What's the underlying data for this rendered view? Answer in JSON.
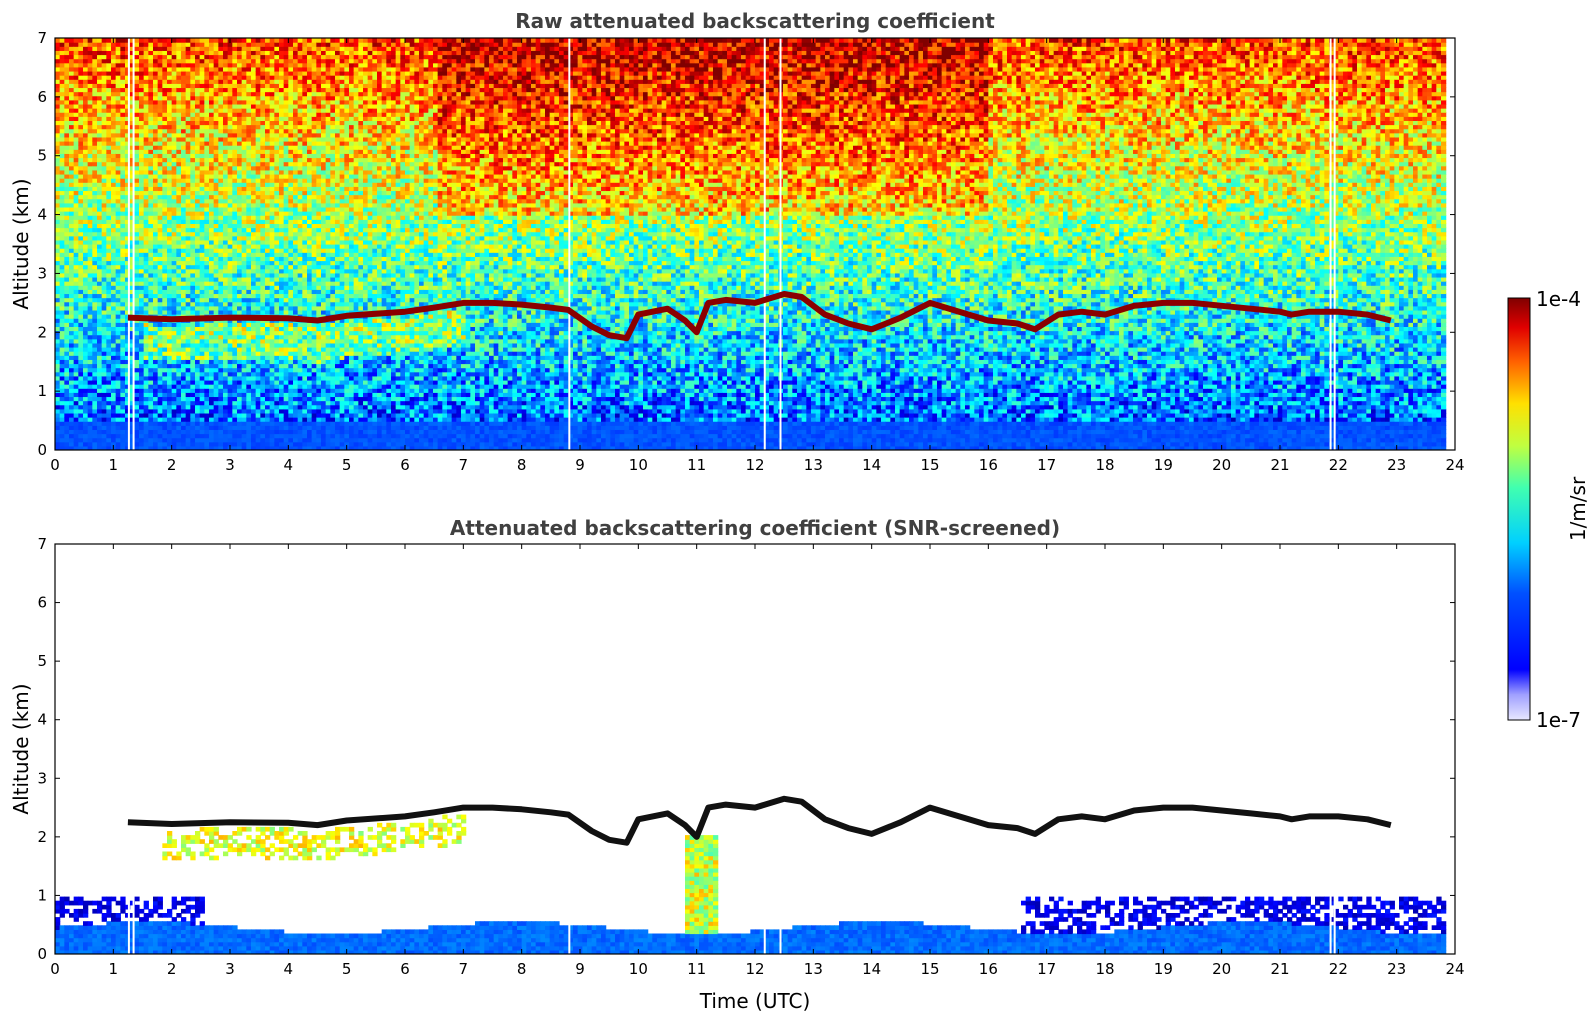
{
  "chart_data": [
    {
      "type": "heatmap",
      "title": "Raw attenuated backscattering coefficient",
      "xlabel": "",
      "ylabel": "Altitude (km)",
      "xlim": [
        0,
        24
      ],
      "ylim": [
        0,
        7
      ],
      "xticks": [
        "0",
        "1",
        "2",
        "3",
        "4",
        "5",
        "6",
        "7",
        "8",
        "9",
        "10",
        "11",
        "12",
        "13",
        "14",
        "15",
        "16",
        "17",
        "18",
        "19",
        "20",
        "21",
        "22",
        "23",
        "24"
      ],
      "yticks": [
        "0",
        "1",
        "2",
        "3",
        "4",
        "5",
        "6",
        "7"
      ],
      "data_gaps_utc": [
        1.25,
        1.33,
        8.8,
        12.15,
        12.42,
        21.85,
        21.92
      ],
      "data_end_utc": 23.8,
      "layer_top": {
        "name": "cloud/aerosol layer (~2-2.7 km)",
        "time": [
          1.25,
          2,
          3,
          4,
          4.5,
          5,
          6,
          6.5,
          7,
          7.5,
          8,
          8.5,
          8.8,
          9.2,
          9.5,
          9.8,
          10,
          10.5,
          10.8,
          11,
          11.2,
          11.5,
          12,
          12.5,
          12.8,
          13.2,
          13.6,
          14,
          14.5,
          15,
          15.5,
          16,
          16.5,
          16.8,
          17.2,
          17.6,
          18,
          18.5,
          19,
          19.5,
          20,
          20.5,
          21,
          21.2,
          21.5,
          22,
          22.5,
          22.9
        ],
        "altitude_km": [
          2.25,
          2.22,
          2.25,
          2.24,
          2.2,
          2.28,
          2.35,
          2.42,
          2.5,
          2.5,
          2.47,
          2.42,
          2.38,
          2.1,
          1.95,
          1.9,
          2.3,
          2.4,
          2.2,
          2.0,
          2.5,
          2.55,
          2.5,
          2.65,
          2.6,
          2.3,
          2.15,
          2.05,
          2.25,
          2.5,
          2.35,
          2.2,
          2.15,
          2.05,
          2.3,
          2.35,
          2.3,
          2.45,
          2.5,
          2.5,
          2.45,
          2.4,
          2.35,
          2.3,
          2.35,
          2.35,
          2.3,
          2.2
        ]
      }
    },
    {
      "type": "heatmap",
      "title": "Attenuated backscattering coefficient (SNR-screened)",
      "xlabel": "Time (UTC)",
      "ylabel": "Altitude (km)",
      "xlim": [
        0,
        24
      ],
      "ylim": [
        0,
        7
      ],
      "xticks": [
        "0",
        "1",
        "2",
        "3",
        "4",
        "5",
        "6",
        "7",
        "8",
        "9",
        "10",
        "11",
        "12",
        "13",
        "14",
        "15",
        "16",
        "17",
        "18",
        "19",
        "20",
        "21",
        "22",
        "23",
        "24"
      ],
      "yticks": [
        "0",
        "1",
        "2",
        "3",
        "4",
        "5",
        "6",
        "7"
      ]
    }
  ],
  "colorbar": {
    "label": "1/m/sr",
    "max_label": "1e-4",
    "min_label": "1e-7",
    "colormap": "jet",
    "scale": "log",
    "range": [
      1e-07,
      0.0001
    ]
  },
  "colors": {
    "layer": "#8b0000",
    "screened_layer": "#111111",
    "background": "#ffffff"
  }
}
